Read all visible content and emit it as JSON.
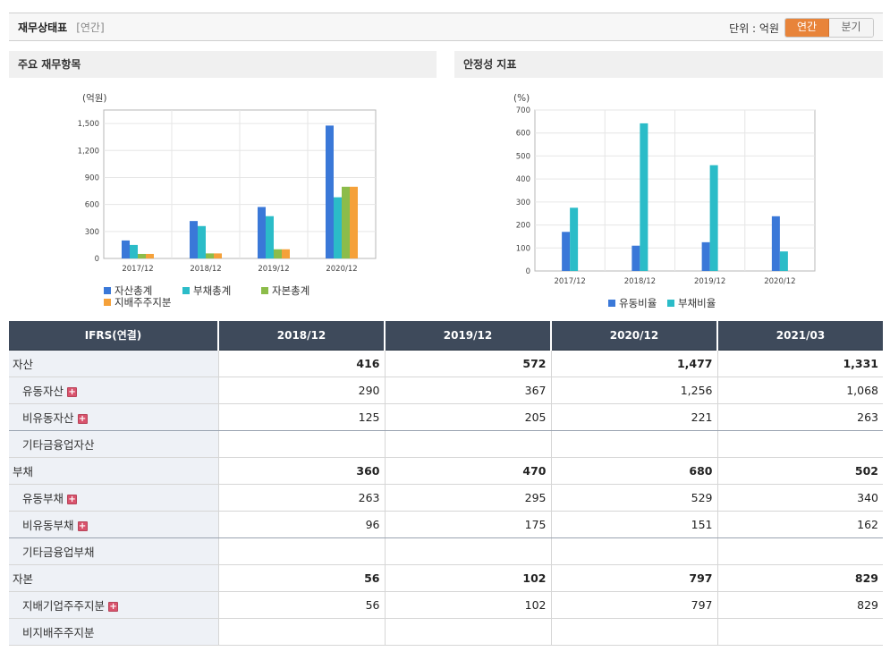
{
  "header": {
    "title": "재무상태표",
    "subtitle": "[연간]",
    "unit_label": "단위 : 억원",
    "toggle": {
      "annual": "연간",
      "quarterly": "분기"
    }
  },
  "panels": {
    "left_title": "주요 재무항목",
    "right_title": "안정성 지표"
  },
  "chart_data": [
    {
      "type": "bar",
      "title": "주요 재무항목",
      "ylabel": "(억원)",
      "categories": [
        "2017/12",
        "2018/12",
        "2019/12",
        "2020/12"
      ],
      "ylim": [
        0,
        1650
      ],
      "yticks": [
        0,
        300,
        600,
        900,
        1200,
        1500
      ],
      "ytick_labels": [
        "0",
        "300",
        "600",
        "900",
        "1,200",
        "1,500"
      ],
      "grid": true,
      "legend": "bottom",
      "series": [
        {
          "name": "자산총계",
          "color": "#3a78d8",
          "values": [
            200,
            416,
            572,
            1477
          ]
        },
        {
          "name": "부채총계",
          "color": "#2bbcc8",
          "values": [
            150,
            360,
            470,
            680
          ]
        },
        {
          "name": "자본총계",
          "color": "#8cbc4a",
          "values": [
            50,
            56,
            102,
            797
          ]
        },
        {
          "name": "지배주주지분",
          "color": "#f5a13a",
          "values": [
            50,
            56,
            102,
            797
          ]
        }
      ]
    },
    {
      "type": "bar",
      "title": "안정성 지표",
      "ylabel": "(%)",
      "categories": [
        "2017/12",
        "2018/12",
        "2019/12",
        "2020/12"
      ],
      "ylim": [
        0,
        700
      ],
      "yticks": [
        0,
        100,
        200,
        300,
        400,
        500,
        600,
        700
      ],
      "ytick_labels": [
        "0",
        "100",
        "200",
        "300",
        "400",
        "500",
        "600",
        "700"
      ],
      "grid": true,
      "legend": "bottom",
      "series": [
        {
          "name": "유동비율",
          "color": "#3a78d8",
          "values": [
            170,
            110,
            125,
            238
          ]
        },
        {
          "name": "부채비율",
          "color": "#2bbcc8",
          "values": [
            275,
            642,
            460,
            85
          ]
        }
      ]
    }
  ],
  "table": {
    "corner": "IFRS(연결)",
    "columns": [
      "2018/12",
      "2019/12",
      "2020/12",
      "2021/03"
    ],
    "rows": [
      {
        "label": "자산",
        "level": 0,
        "plus": false,
        "values": [
          "416",
          "572",
          "1,477",
          "1,331"
        ]
      },
      {
        "label": "유동자산",
        "level": 1,
        "plus": true,
        "values": [
          "290",
          "367",
          "1,256",
          "1,068"
        ]
      },
      {
        "label": "비유동자산",
        "level": 1,
        "plus": true,
        "values": [
          "125",
          "205",
          "221",
          "263"
        ]
      },
      {
        "label": "기타금융업자산",
        "level": 1,
        "plus": false,
        "values": [
          "",
          "",
          "",
          ""
        ]
      },
      {
        "label": "부채",
        "level": 0,
        "plus": false,
        "values": [
          "360",
          "470",
          "680",
          "502"
        ]
      },
      {
        "label": "유동부채",
        "level": 1,
        "plus": true,
        "values": [
          "263",
          "295",
          "529",
          "340"
        ]
      },
      {
        "label": "비유동부채",
        "level": 1,
        "plus": true,
        "values": [
          "96",
          "175",
          "151",
          "162"
        ]
      },
      {
        "label": "기타금융업부채",
        "level": 1,
        "plus": false,
        "values": [
          "",
          "",
          "",
          ""
        ]
      },
      {
        "label": "자본",
        "level": 0,
        "plus": false,
        "values": [
          "56",
          "102",
          "797",
          "829"
        ]
      },
      {
        "label": "지배기업주주지분",
        "level": 1,
        "plus": true,
        "values": [
          "56",
          "102",
          "797",
          "829"
        ]
      },
      {
        "label": "비지배주주지분",
        "level": 1,
        "plus": false,
        "values": [
          "",
          "",
          "",
          ""
        ]
      }
    ]
  }
}
